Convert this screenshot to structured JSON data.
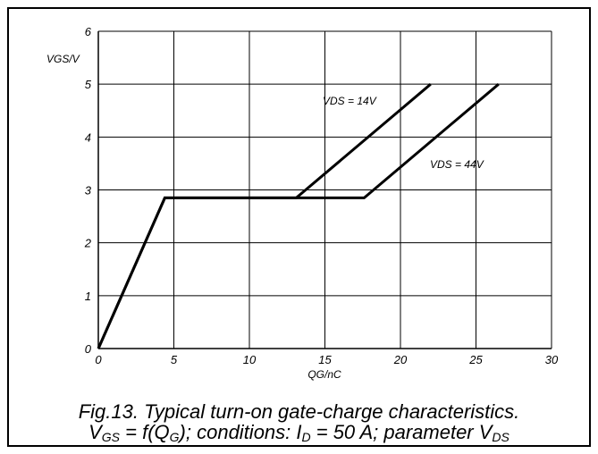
{
  "chart_data": {
    "type": "line",
    "xlabel": "QG/nC",
    "ylabel": "VGS/V",
    "xlim": [
      0,
      30
    ],
    "ylim": [
      0,
      6
    ],
    "x_ticks": [
      "0",
      "5",
      "10",
      "15",
      "20",
      "25",
      "30"
    ],
    "y_ticks": [
      "0",
      "1",
      "2",
      "3",
      "4",
      "5",
      "6"
    ],
    "grid": true,
    "series": [
      {
        "name": "VDS = 14V",
        "points": [
          [
            0,
            0
          ],
          [
            4.4,
            2.85
          ],
          [
            13.1,
            2.85
          ],
          [
            22.0,
            5.0
          ]
        ]
      },
      {
        "name": "VDS = 44V",
        "points": [
          [
            0,
            0
          ],
          [
            4.4,
            2.85
          ],
          [
            17.6,
            2.85
          ],
          [
            26.5,
            5.0
          ]
        ]
      }
    ],
    "annotations": [
      {
        "text": "VDS = 14V"
      },
      {
        "text": "VDS = 44V"
      }
    ]
  },
  "caption": {
    "line1": "Fig.13.  Typical turn-on gate-charge characteristics.",
    "line2_parts": [
      "V",
      "GS",
      " = f(Q",
      "G",
      "); conditions: I",
      "D",
      " = 50 A; parameter V",
      "DS"
    ]
  },
  "colors": {
    "line": "#000000",
    "grid": "#000000",
    "background": "#ffffff"
  }
}
